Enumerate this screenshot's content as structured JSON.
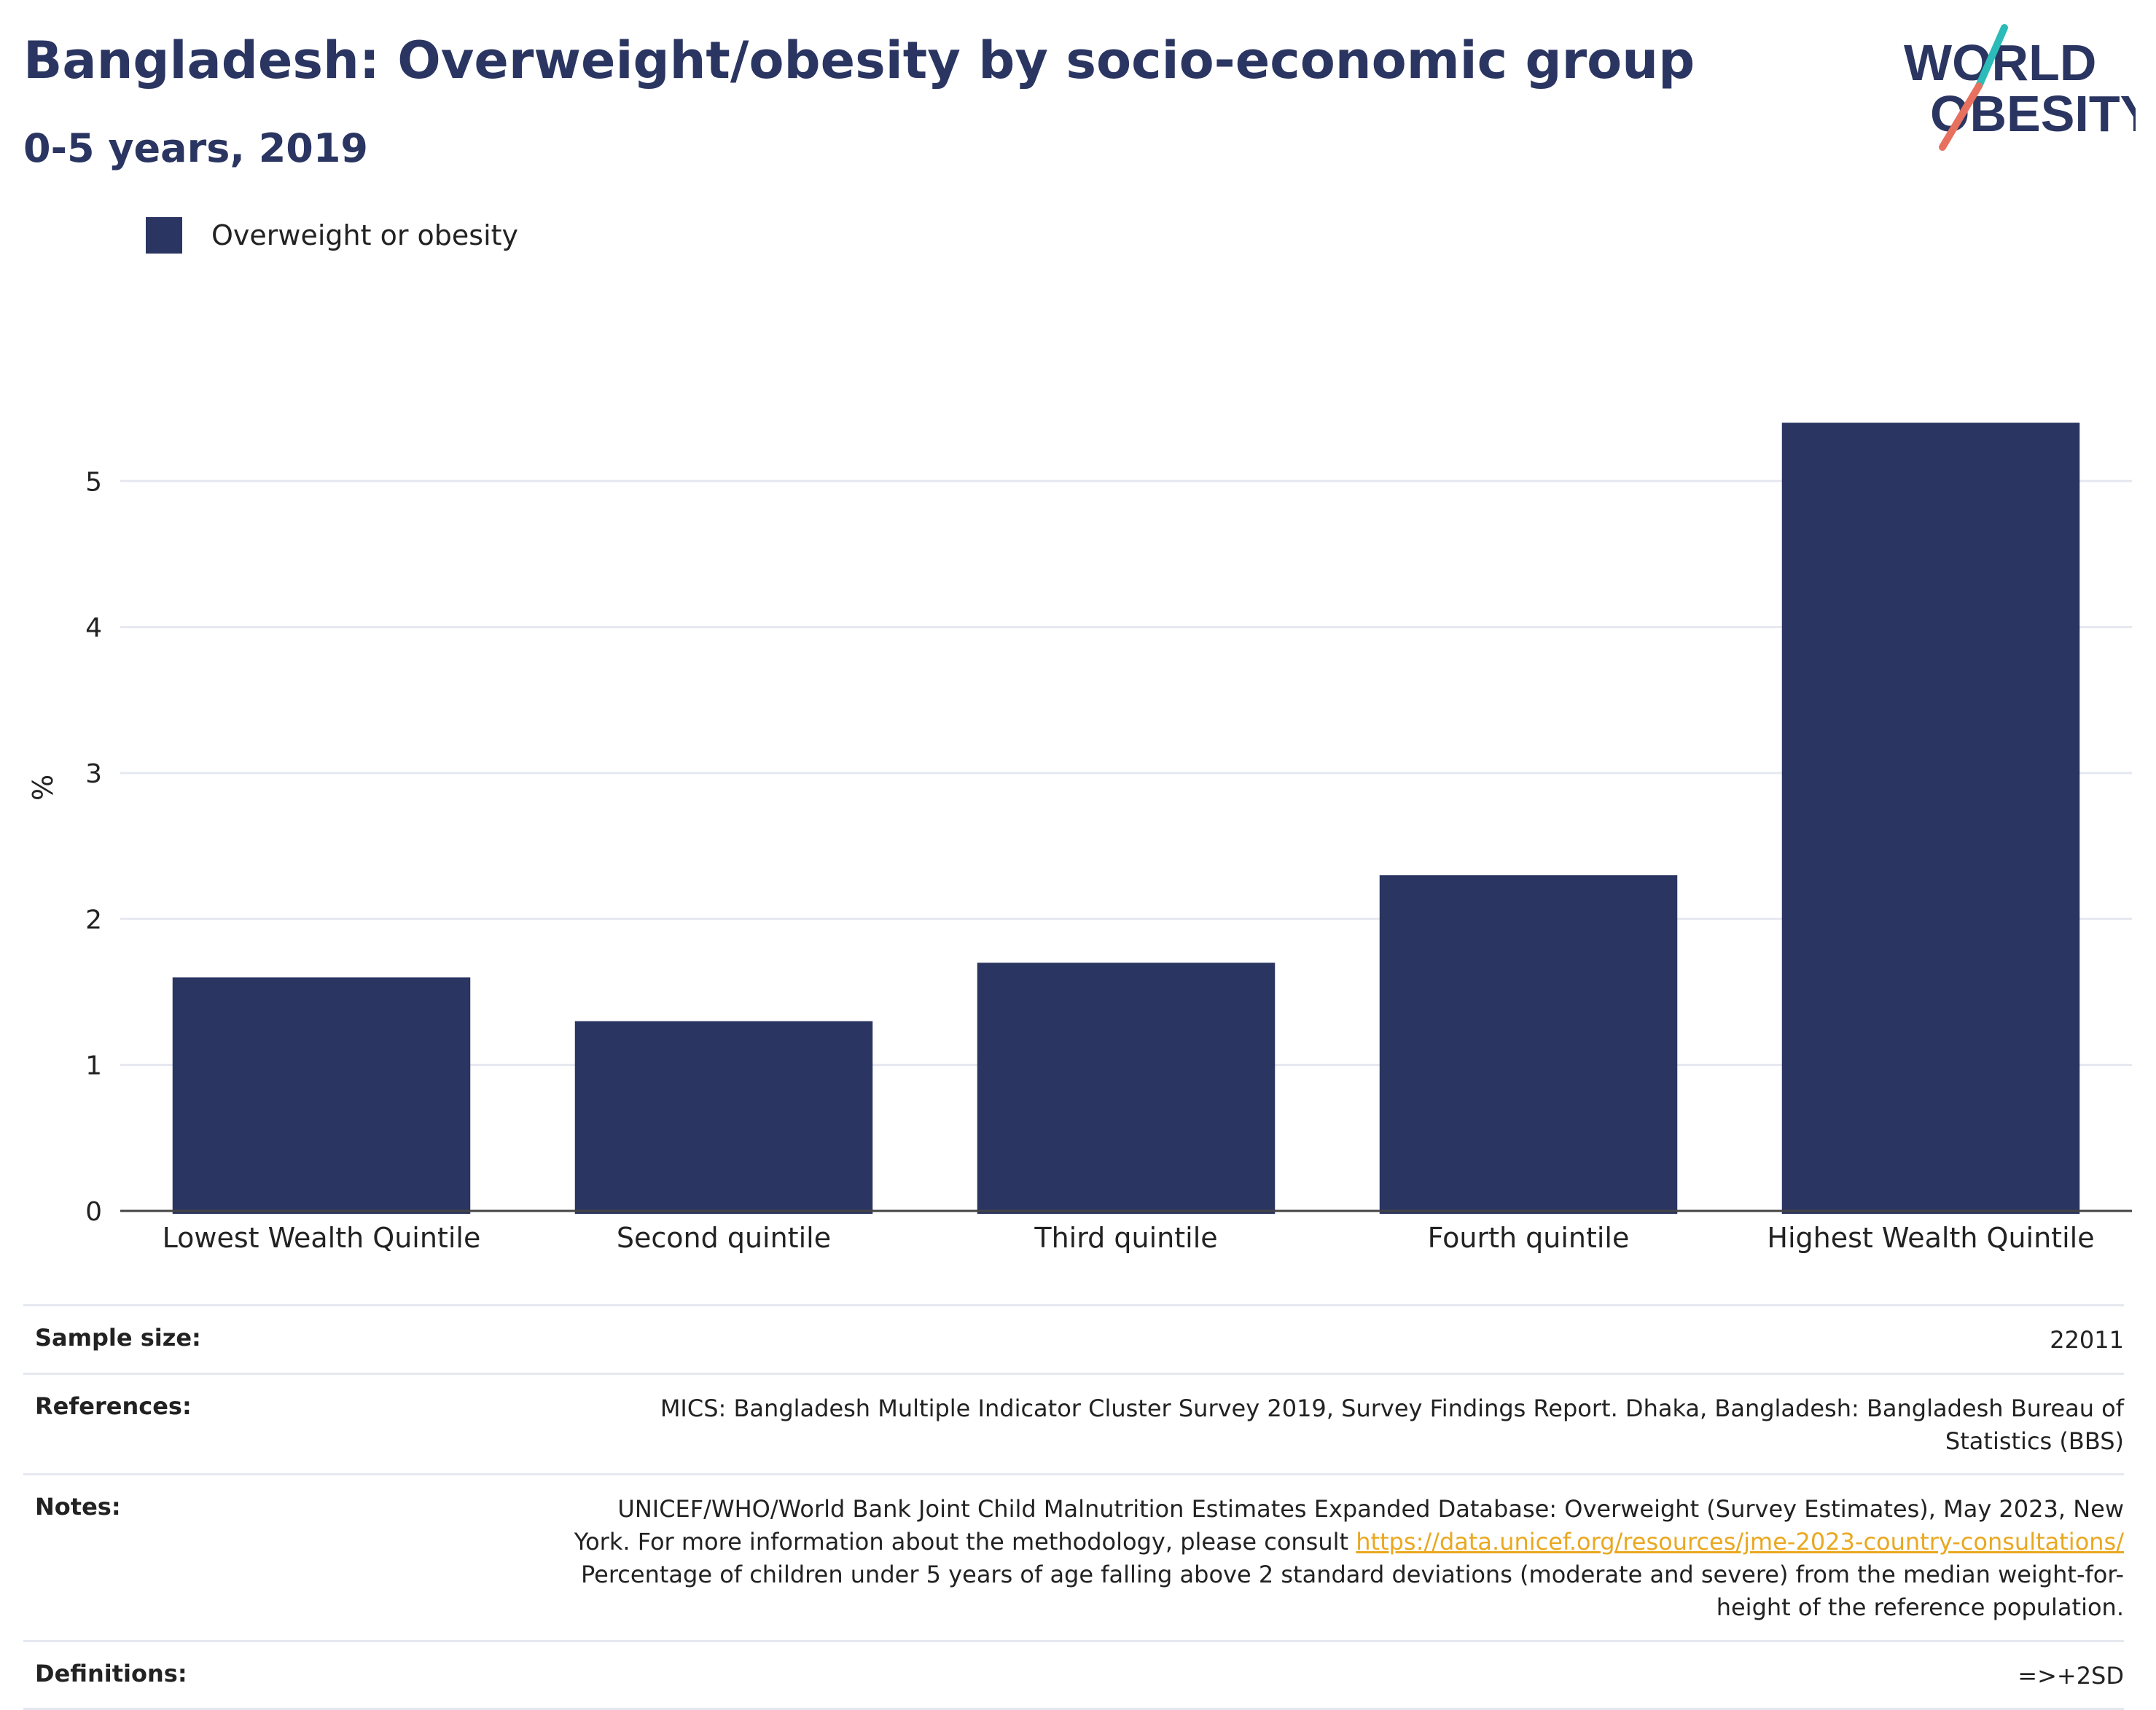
{
  "header": {
    "title": "Bangladesh: Overweight/obesity by socio-economic group",
    "subtitle": "0-5 years, 2019"
  },
  "logo": {
    "line1": "WORLD",
    "line2": "OBESITY",
    "slash_colors": [
      "#2bbbb8",
      "#e8705f"
    ]
  },
  "legend": {
    "label": "Overweight or obesity",
    "color": "#2a3561"
  },
  "chart_data": {
    "type": "bar",
    "categories": [
      "Lowest Wealth Quintile",
      "Second quintile",
      "Third quintile",
      "Fourth quintile",
      "Highest Wealth Quintile"
    ],
    "series": [
      {
        "name": "Overweight or obesity",
        "values": [
          1.6,
          1.3,
          1.7,
          2.3,
          5.4
        ],
        "color": "#2a3561"
      }
    ],
    "ylabel": "%",
    "ylim": [
      0,
      5.8
    ],
    "yticks": [
      0,
      1,
      2,
      3,
      4,
      5
    ],
    "grid": true,
    "legend_position": "top-left"
  },
  "info": {
    "sample_size_label": "Sample size:",
    "sample_size_value": "22011",
    "references_label": "References:",
    "references_value": "MICS: Bangladesh Multiple Indicator Cluster Survey 2019, Survey Findings Report. Dhaka, Bangladesh: Bangladesh Bureau of Statistics (BBS)",
    "notes_label": "Notes:",
    "notes_text_1": "UNICEF/WHO/World Bank Joint Child Malnutrition Estimates Expanded Database: Overweight (Survey Estimates), May 2023, New York. For more information about the methodology, please consult ",
    "notes_link": "https://data.unicef.org/resources/jme-2023-country-consultations/",
    "notes_text_2": " Percentage of children under 5 years of age falling above 2 standard deviations (moderate and severe) from the median weight-for-height of the reference population.",
    "definitions_label": "Definitions:",
    "definitions_value": "=>+2SD"
  }
}
